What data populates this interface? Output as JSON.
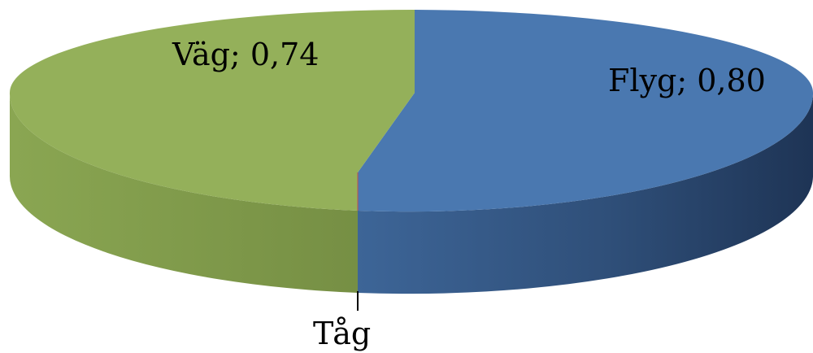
{
  "chart_data": {
    "type": "pie",
    "style": "3d",
    "slices": [
      {
        "name": "Flyg",
        "value": 0.8,
        "label": "Flyg; 0,80",
        "color": "#4a78b0"
      },
      {
        "name": "Tåg",
        "value": 0.0,
        "label": "Tåg",
        "color": "#c0504d"
      },
      {
        "name": "Väg",
        "value": 0.74,
        "label": "Väg; 0,74",
        "color": "#94b05a"
      }
    ]
  }
}
